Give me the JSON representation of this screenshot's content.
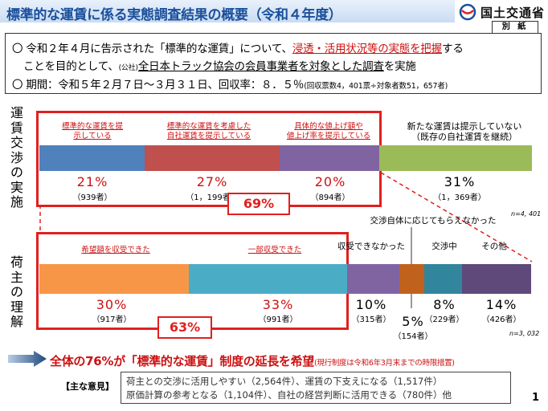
{
  "header": {
    "title": "標準的な運賃に係る実態調査結果の概要（令和４年度）",
    "ministry": "国土交通省",
    "attachment": "別 紙"
  },
  "info": {
    "line1_a": "〇 令和２年４月に告示された「標準的な運賃」について、",
    "line1_b": "浸透・活用状況等の実態を把握",
    "line1_c": "する",
    "line2_a": "ことを目的として、",
    "line2_b": "(公社)",
    "line2_c": "全日本トラック協会の会員事業者を対象とした調査",
    "line2_d": "を実施",
    "line3_a": "〇 期間：令和５年２月７日～３月３１日、回収率：８．５％",
    "line3_b": "(回収票数4，401票÷対象者数51，657者)"
  },
  "section1": {
    "side_label": "運賃交渉の実施",
    "segments": [
      {
        "label": "標準的な運賃を提\n示している",
        "pct": "21%",
        "count": "（939者）",
        "color": "#4f81bd"
      },
      {
        "label": "標準的な運賃を考慮した\n自社運賃を提示している",
        "pct": "27%",
        "count": "（1，199者）",
        "color": "#c0504d"
      },
      {
        "label": "具体的な値上げ額や\n値上げ率を提示している",
        "pct": "20%",
        "count": "（894者）",
        "color": "#8064a2"
      },
      {
        "label": "新たな運賃は提示していない\n（既存の自社運賃を継続）",
        "pct": "31%",
        "count": "（1，369者）",
        "color": "#9bbb59"
      }
    ],
    "total": "69%",
    "n_note": "n=4, 401"
  },
  "section2": {
    "side_label": "荷主の理解",
    "segments": [
      {
        "label": "希望額を収受できた",
        "pct": "30%",
        "count": "（917者）",
        "color": "#f79646"
      },
      {
        "label": "一部収受できた",
        "pct": "33%",
        "count": "（991者）",
        "color": "#4bacc6"
      },
      {
        "label": "収受できなかった",
        "pct": "10%",
        "count": "（315者）",
        "color": "#8064a2"
      },
      {
        "label": "交渉自体に応じてもらえなかった",
        "pct": "5%",
        "count": "（154者）",
        "color": "#c0621e"
      },
      {
        "label": "交渉中",
        "pct": "8%",
        "count": "（229者）",
        "color": "#31859c"
      },
      {
        "label": "その他",
        "pct": "14%",
        "count": "（426者）",
        "color": "#5f497a"
      }
    ],
    "total": "63%",
    "n_note": "n=3, 032"
  },
  "bottom": {
    "main": "全体の76%が「標準的な運賃」制度の延長を希望",
    "sub": "(現行制度は令和6年3月末までの時限措置)",
    "opinion_label": "【主な意見】",
    "opinion1": "荷主との交渉に活用しやすい（2,564件）、運賃の下支えになる（1,517件）",
    "opinion2": "原価計算の参考となる（1,104件）、自社の経営判断に活用できる（780件）他"
  },
  "page_number": "1"
}
